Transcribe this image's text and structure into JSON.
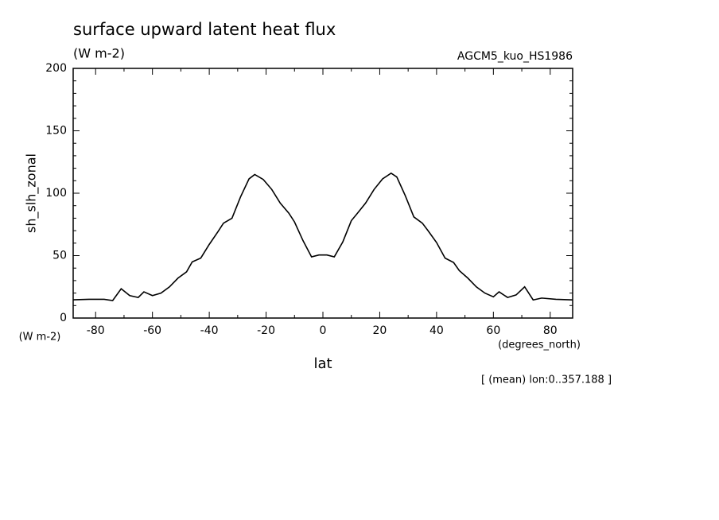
{
  "chart_data": {
    "type": "line",
    "title": "surface upward latent heat flux",
    "subtitle": "(W m-2)",
    "source": "AGCM5_kuo_HS1986",
    "ylabel": "sh_slh_zonal",
    "yunits": "(W m-2)",
    "xlabel": "lat",
    "xunits": "(degrees_north)",
    "note": "[ (mean) lon:0..357.188 ]",
    "x": [
      -87.9,
      -82.3,
      -77,
      -74,
      -71,
      -68,
      -65,
      -63,
      -60,
      -57,
      -54,
      -51,
      -48,
      -46,
      -43,
      -40,
      -37,
      -35,
      -32,
      -29,
      -26,
      -24,
      -21,
      -18,
      -15,
      -12,
      -10,
      -7,
      -4,
      -1.4,
      1.4,
      4,
      7,
      10,
      12,
      15,
      18,
      21,
      24,
      26,
      29,
      32,
      35,
      37,
      40,
      43,
      46,
      48,
      51,
      54,
      57,
      60,
      62,
      65,
      68,
      71,
      74,
      77,
      82,
      87.9
    ],
    "series": [
      {
        "name": "sh_slh_zonal",
        "color": "#000000",
        "values": [
          14.6,
          15,
          15,
          14,
          23.5,
          18,
          16.5,
          21,
          18,
          20,
          25,
          32,
          37,
          45,
          48,
          59,
          69,
          76,
          80,
          97,
          111.5,
          115,
          111,
          103,
          92,
          84,
          77,
          62,
          49,
          50.5,
          50.5,
          49,
          61,
          78,
          83.5,
          92,
          103,
          111.5,
          116,
          113,
          98,
          81,
          76,
          70,
          60.5,
          48,
          44.5,
          38,
          32,
          25,
          20,
          17,
          21,
          16.5,
          18.5,
          25,
          14.5,
          16,
          15,
          14.5
        ]
      }
    ],
    "xlim": [
      -87.9,
      87.9
    ],
    "ylim": [
      0,
      200
    ],
    "xticks": [
      -80,
      -60,
      -40,
      -20,
      0,
      20,
      40,
      60,
      80
    ],
    "yticks": [
      0,
      50,
      100,
      150,
      200
    ],
    "xminorticks": [
      -70,
      -50,
      -30,
      -10,
      10,
      30,
      50,
      70
    ],
    "yminorticks": [
      10,
      20,
      30,
      40,
      60,
      70,
      80,
      90,
      110,
      120,
      130,
      140,
      160,
      170,
      180,
      190
    ]
  }
}
